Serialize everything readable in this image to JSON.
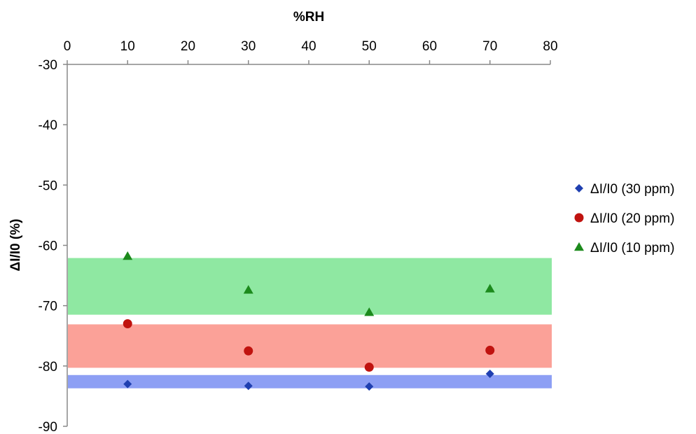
{
  "chart_data": {
    "type": "scatter",
    "xlabel": "%RH",
    "ylabel": "ΔI/I0 (%)",
    "x_axis_position": "top",
    "xlim": [
      0,
      80
    ],
    "ylim": [
      -90,
      -30
    ],
    "x_ticks": [
      "0",
      "10",
      "20",
      "30",
      "40",
      "50",
      "60",
      "70",
      "80"
    ],
    "y_ticks": [
      "-30",
      "-40",
      "-50",
      "-60",
      "-70",
      "-80",
      "-90"
    ],
    "grid": false,
    "legend_position": "right",
    "series": [
      {
        "name": "ΔI/I0 (30 ppm)",
        "marker": "diamond",
        "color": "#1f3fb0",
        "points": [
          [
            10,
            -83.0
          ],
          [
            30,
            -83.3
          ],
          [
            50,
            -83.4
          ],
          [
            70,
            -81.3
          ]
        ]
      },
      {
        "name": "ΔI/I0 (20 ppm)",
        "marker": "circle",
        "color": "#c0130f",
        "points": [
          [
            10,
            -73.0
          ],
          [
            30,
            -77.5
          ],
          [
            50,
            -80.2
          ],
          [
            70,
            -77.4
          ]
        ]
      },
      {
        "name": "ΔI/I0 (10 ppm)",
        "marker": "triangle",
        "color": "#1c8a1c",
        "points": [
          [
            10,
            -61.8
          ],
          [
            30,
            -67.4
          ],
          [
            50,
            -71.1
          ],
          [
            70,
            -67.2
          ]
        ]
      }
    ],
    "bands": [
      {
        "series": "ΔI/I0 (10 ppm)",
        "y_from": -62.1,
        "y_to": -71.5,
        "color": "#8fe8a2"
      },
      {
        "series": "ΔI/I0 (20 ppm)",
        "y_from": -73.1,
        "y_to": -80.3,
        "color": "#fba198"
      },
      {
        "series": "ΔI/I0 (30 ppm)",
        "y_from": -81.5,
        "y_to": -83.7,
        "color": "#8d9ff4"
      }
    ]
  }
}
